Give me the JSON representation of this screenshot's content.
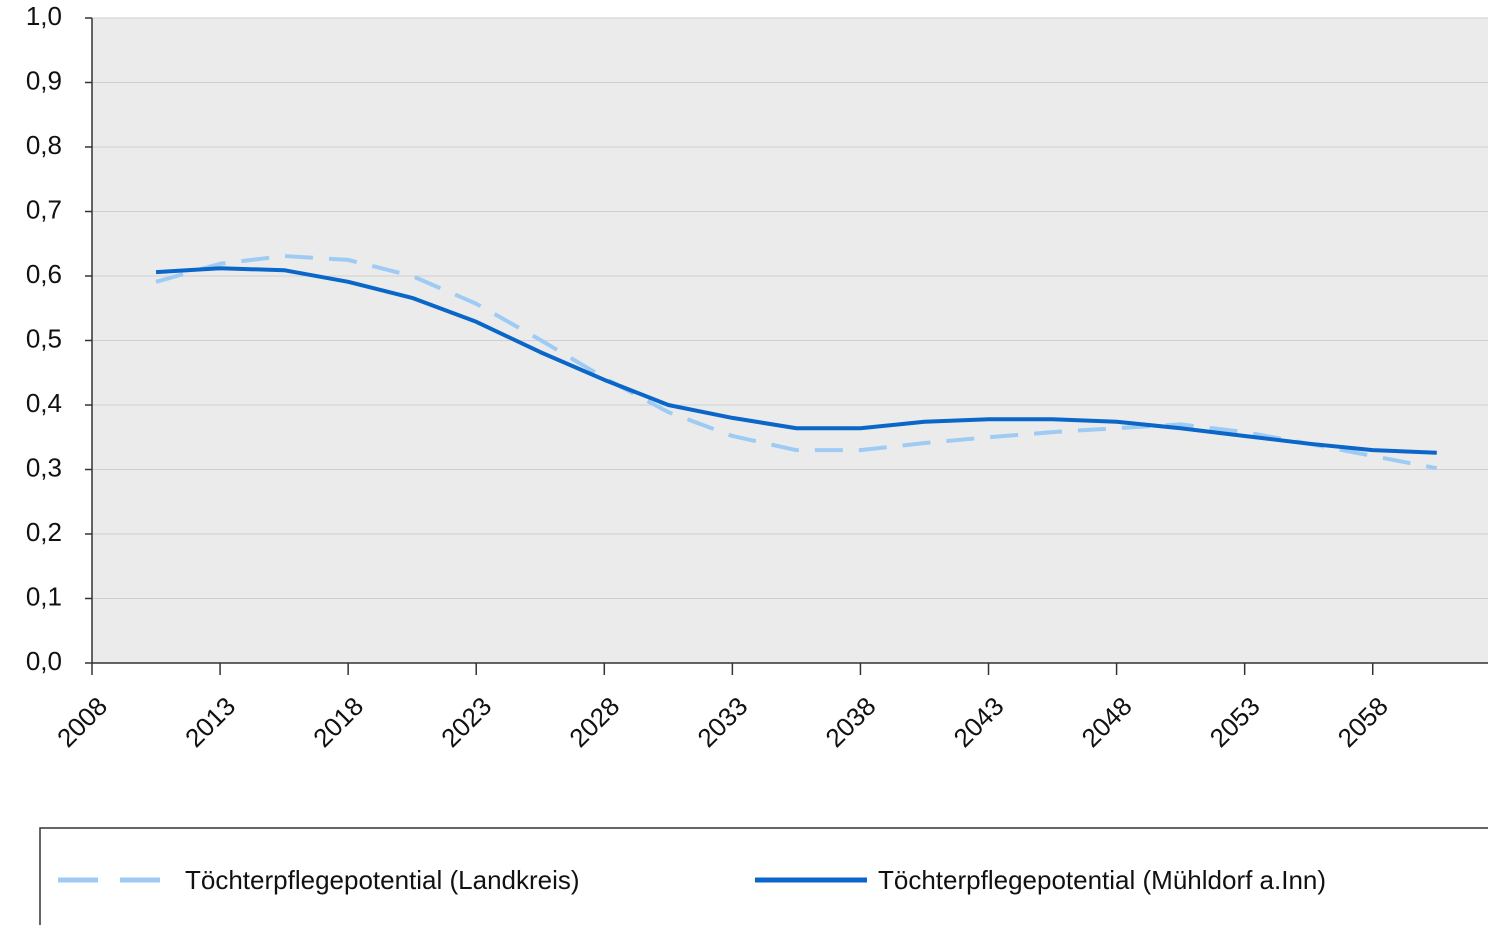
{
  "chart_data": {
    "type": "line",
    "x": [
      2010.5,
      2013,
      2015.5,
      2018,
      2020.5,
      2023,
      2025.5,
      2028,
      2030.5,
      2033,
      2035.5,
      2038,
      2040.5,
      2043,
      2045.5,
      2048,
      2050.5,
      2053,
      2055.5,
      2058,
      2060.5
    ],
    "series": [
      {
        "name": "Töchterpflegepotential (Landkreis)",
        "color": "#9ecbf4",
        "dash": true,
        "values": [
          0.591,
          0.619,
          0.631,
          0.625,
          0.6,
          0.557,
          0.501,
          0.442,
          0.389,
          0.352,
          0.33,
          0.33,
          0.341,
          0.35,
          0.358,
          0.364,
          0.37,
          0.358,
          0.34,
          0.321,
          0.302
        ]
      },
      {
        "name": "Töchterpflegepotential (Mühldorf a.Inn)",
        "color": "#0a66c8",
        "dash": false,
        "values": [
          0.606,
          0.612,
          0.609,
          0.591,
          0.566,
          0.529,
          0.482,
          0.439,
          0.4,
          0.38,
          0.364,
          0.364,
          0.374,
          0.378,
          0.378,
          0.374,
          0.364,
          0.352,
          0.34,
          0.33,
          0.326
        ]
      }
    ],
    "xlim": [
      2008,
      2062.5
    ],
    "xticks": [
      2008,
      2013,
      2018,
      2023,
      2028,
      2033,
      2038,
      2043,
      2048,
      2053,
      2058
    ],
    "ylim": [
      0,
      1
    ],
    "yticks": [
      {
        "value": 0,
        "label": "0,0"
      },
      {
        "value": 0.1,
        "label": "0,1"
      },
      {
        "value": 0.2,
        "label": "0,2"
      },
      {
        "value": 0.3,
        "label": "0,3"
      },
      {
        "value": 0.4,
        "label": "0,4"
      },
      {
        "value": 0.5,
        "label": "0,5"
      },
      {
        "value": 0.6,
        "label": "0,6"
      },
      {
        "value": 0.7,
        "label": "0,7"
      },
      {
        "value": 0.8,
        "label": "0,8"
      },
      {
        "value": 0.9,
        "label": "0,9"
      },
      {
        "value": 1,
        "label": "1,0"
      }
    ],
    "grid": true,
    "legend": "bottom"
  }
}
